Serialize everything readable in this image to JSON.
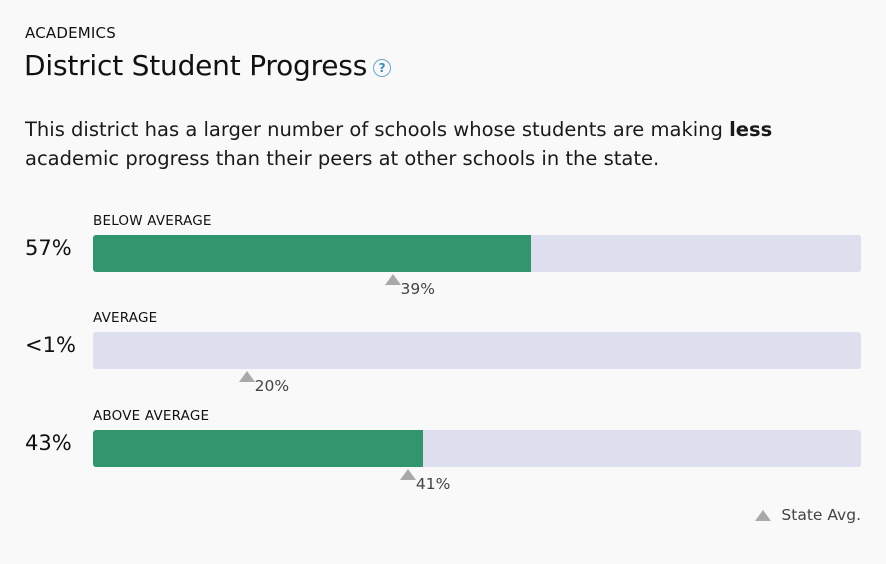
{
  "section_label": "ACADEMICS",
  "title": "District Student Progress",
  "help_label": "?",
  "summary": {
    "before": "This district has a larger number of schools whose students are making ",
    "emphasis": "less",
    "after": " academic progress than their peers at other schools in the state."
  },
  "colors": {
    "district_fill": "#31966d",
    "track": "#dddeee",
    "state_marker": "#a9a9aa"
  },
  "chart_data": {
    "type": "bar",
    "categories": [
      "BELOW AVERAGE",
      "AVERAGE",
      "ABOVE AVERAGE"
    ],
    "series": [
      {
        "values": [
          57,
          0.5,
          43
        ]
      },
      {
        "values": [
          39,
          20,
          41
        ]
      }
    ],
    "value_labels": [
      "57%",
      "<1%",
      "43%"
    ],
    "state_labels": [
      "39%",
      "20%",
      "41%"
    ],
    "legend": [
      {
        "label": "State Avg.",
        "marker": "triangle",
        "color": "#a9a9aa"
      }
    ],
    "legend_position": "bottom-right",
    "xlim": [
      0,
      100
    ]
  }
}
